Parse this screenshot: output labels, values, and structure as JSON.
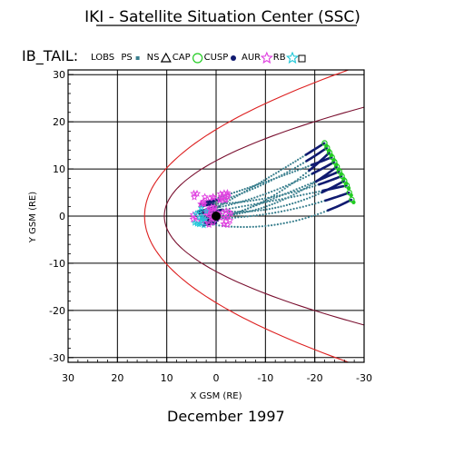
{
  "header": {
    "title": "IKI - Satellite Situation Center (SSC)",
    "panel_label": "IB_TAIL:"
  },
  "footer": {
    "month": "December",
    "year": "1997"
  },
  "chart_data": {
    "type": "scatter",
    "xlabel": "X GSM (RE)",
    "ylabel": "Y GSM (RE)",
    "xlim": [
      30,
      -30
    ],
    "ylim": [
      31,
      -31
    ],
    "x_ticks": [
      30,
      20,
      10,
      0,
      -10,
      -20,
      -30
    ],
    "x_tick_labels": [
      "30",
      "20",
      "10",
      "0",
      "-10",
      "-20",
      "-30"
    ],
    "y_ticks": [
      -30,
      -20,
      -10,
      0,
      10,
      20,
      30
    ],
    "y_tick_labels": [
      "-30",
      "-20",
      "-10",
      "0",
      "10",
      "20",
      "30"
    ],
    "grid": true,
    "legend_position": "top",
    "legend": [
      {
        "name": "LOBS",
        "marker": "none",
        "color": "#000000"
      },
      {
        "name": "PS",
        "marker": "small-square",
        "color": "#3a7f8e"
      },
      {
        "name": "NS",
        "marker": "triangle",
        "color": "#000000"
      },
      {
        "name": "CAP",
        "marker": "circle",
        "color": "#22cc22"
      },
      {
        "name": "CUSP",
        "marker": "filled-dot",
        "color": "#101a70"
      },
      {
        "name": "AUR",
        "marker": "star",
        "color": "#e040e0"
      },
      {
        "name": "RB",
        "marker": "star",
        "color": "#20c8d8"
      },
      {
        "name": "",
        "marker": "square",
        "color": "#000000"
      }
    ],
    "boundaries": [
      {
        "name": "bow shock",
        "color": "#dd2020",
        "x_nose": 14.5,
        "flare_k": 0.043
      },
      {
        "name": "magnetopause",
        "color": "#7a1030",
        "x_nose": 10.5,
        "flare_k": 0.076
      }
    ],
    "earth": {
      "x": 0,
      "y": 0,
      "radius": 1
    },
    "trajectories": {
      "color": "#3a7f8e",
      "start_x": [
        2.5,
        3.0,
        3.5,
        2.0,
        3.2,
        2.8,
        1.8,
        3.8,
        2.2,
        2.6,
        3.4,
        1.6
      ],
      "start_y": [
        -1.5,
        -0.5,
        0.5,
        1.5,
        2.5,
        -2.0,
        0.0,
        1.0,
        3.0,
        -1.0,
        2.0,
        0.8
      ],
      "end_x": [
        -27.5,
        -27.0,
        -26.5,
        -26.0,
        -25.5,
        -25.0,
        -24.5,
        -24.0,
        -23.5,
        -23.0,
        -22.5,
        -22.0
      ],
      "end_y": [
        3.5,
        5.0,
        6.5,
        7.5,
        8.5,
        9.5,
        10.5,
        11.5,
        12.5,
        13.5,
        14.5,
        15.5
      ]
    },
    "aurora_cluster": {
      "color": "#e040e0",
      "x_range": [
        -3,
        5
      ],
      "y_range": [
        -2,
        5
      ]
    },
    "cusp_segments": {
      "color": "#101a70"
    },
    "cap_points": {
      "color": "#22cc22"
    }
  }
}
